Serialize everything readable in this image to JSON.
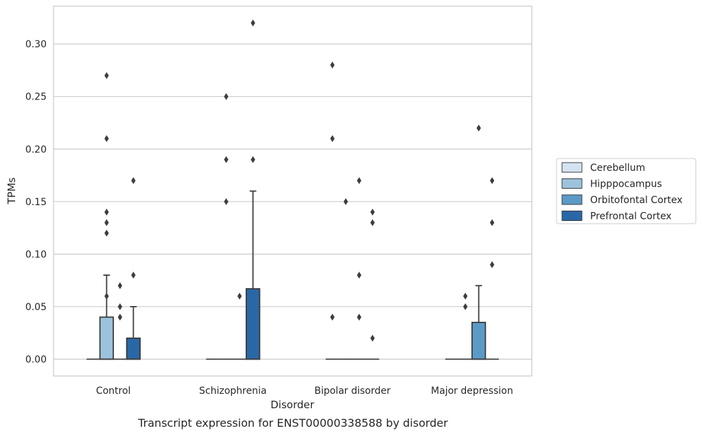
{
  "chart_data": {
    "type": "box",
    "title": "",
    "caption": "Transcript expression for ENST00000338588 by disorder",
    "xlabel": "Disorder",
    "ylabel": "TPMs",
    "ylim": [
      -0.016,
      0.336
    ],
    "yticks": [
      0.0,
      0.05,
      0.1,
      0.15,
      0.2,
      0.25,
      0.3
    ],
    "ytick_labels": [
      "0.00",
      "0.05",
      "0.10",
      "0.15",
      "0.20",
      "0.25",
      "0.30"
    ],
    "grid": "horizontal",
    "legend_placement": "right",
    "categories": [
      "Control",
      "Schizophrenia",
      "Bipolar disorder",
      "Major depression"
    ],
    "series": [
      {
        "name": "Cerebellum",
        "color": "#d3e3f1",
        "boxes": [
          {
            "q1": 0,
            "median": 0,
            "q3": 0,
            "whisker_low": 0,
            "whisker_high": 0,
            "outliers": []
          },
          {
            "q1": 0,
            "median": 0,
            "q3": 0,
            "whisker_low": 0,
            "whisker_high": 0,
            "outliers": []
          },
          {
            "q1": 0,
            "median": 0,
            "q3": 0,
            "whisker_low": 0,
            "whisker_high": 0,
            "outliers": [
              0.28,
              0.21,
              0.04
            ]
          },
          {
            "q1": 0,
            "median": 0,
            "q3": 0,
            "whisker_low": 0,
            "whisker_high": 0,
            "outliers": []
          }
        ]
      },
      {
        "name": "Hipppocampus",
        "color": "#9cc3dc",
        "boxes": [
          {
            "q1": 0,
            "median": 0,
            "q3": 0.04,
            "whisker_low": 0,
            "whisker_high": 0.08,
            "outliers": [
              0.27,
              0.21,
              0.14,
              0.13,
              0.12,
              0.06
            ]
          },
          {
            "q1": 0,
            "median": 0,
            "q3": 0,
            "whisker_low": 0,
            "whisker_high": 0,
            "outliers": [
              0.25,
              0.19,
              0.15
            ]
          },
          {
            "q1": 0,
            "median": 0,
            "q3": 0,
            "whisker_low": 0,
            "whisker_high": 0,
            "outliers": [
              0.15
            ]
          },
          {
            "q1": 0,
            "median": 0,
            "q3": 0,
            "whisker_low": 0,
            "whisker_high": 0,
            "outliers": [
              0.06,
              0.05
            ]
          }
        ]
      },
      {
        "name": "Orbitofontal Cortex",
        "color": "#5b9ac7",
        "boxes": [
          {
            "q1": 0,
            "median": 0,
            "q3": 0,
            "whisker_low": 0,
            "whisker_high": 0,
            "outliers": [
              0.07,
              0.05,
              0.04
            ]
          },
          {
            "q1": 0,
            "median": 0,
            "q3": 0,
            "whisker_low": 0,
            "whisker_high": 0,
            "outliers": [
              0.06
            ]
          },
          {
            "q1": 0,
            "median": 0,
            "q3": 0,
            "whisker_low": 0,
            "whisker_high": 0,
            "outliers": [
              0.17,
              0.08,
              0.04
            ]
          },
          {
            "q1": 0,
            "median": 0,
            "q3": 0.035,
            "whisker_low": 0,
            "whisker_high": 0.07,
            "outliers": [
              0.22
            ]
          }
        ]
      },
      {
        "name": "Prefrontal Cortex",
        "color": "#2a67a6",
        "boxes": [
          {
            "q1": 0,
            "median": 0,
            "q3": 0.02,
            "whisker_low": 0,
            "whisker_high": 0.05,
            "outliers": [
              0.17,
              0.08
            ]
          },
          {
            "q1": 0,
            "median": 0,
            "q3": 0.067,
            "whisker_low": 0,
            "whisker_high": 0.16,
            "outliers": [
              0.32,
              0.19
            ]
          },
          {
            "q1": 0,
            "median": 0,
            "q3": 0,
            "whisker_low": 0,
            "whisker_high": 0,
            "outliers": [
              0.14,
              0.13,
              0.02
            ]
          },
          {
            "q1": 0,
            "median": 0,
            "q3": 0,
            "whisker_low": 0,
            "whisker_high": 0,
            "outliers": [
              0.17,
              0.13,
              0.09
            ]
          }
        ]
      }
    ]
  }
}
